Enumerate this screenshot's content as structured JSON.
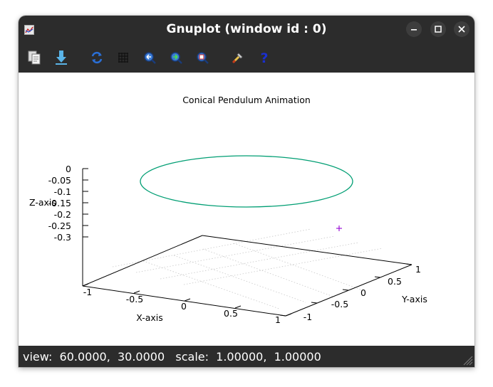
{
  "window": {
    "title": "Gnuplot (window id : 0)"
  },
  "toolbar": {
    "buttons": [
      {
        "name": "copy-to-clipboard",
        "icon": "clipboard-icon"
      },
      {
        "name": "export",
        "icon": "download-arrow-icon"
      },
      {
        "name": "replot",
        "icon": "refresh-icon"
      },
      {
        "name": "toggle-grid",
        "icon": "grid-icon"
      },
      {
        "name": "previous-zoom",
        "icon": "zoom-previous-icon"
      },
      {
        "name": "next-zoom",
        "icon": "zoom-next-icon"
      },
      {
        "name": "autoscale",
        "icon": "autoscale-icon"
      },
      {
        "name": "settings",
        "icon": "wrench-icon"
      },
      {
        "name": "help",
        "icon": "question-icon"
      }
    ]
  },
  "status": {
    "text": "view:  60.0000,  30.0000   scale:  1.00000,  1.00000"
  },
  "chart_data": {
    "type": "line",
    "title": "Conical Pendulum Animation",
    "xlabel": "X-axis",
    "ylabel": "Y-axis",
    "zlabel": "Z-axis",
    "xlim": [
      -1,
      1
    ],
    "ylim": [
      -1,
      1
    ],
    "zlim": [
      -0.35,
      0
    ],
    "x_ticks": [
      "-1",
      "-0.5",
      "0",
      "0.5",
      "1"
    ],
    "y_ticks": [
      "-1",
      "-0.5",
      "0",
      "0.5",
      "1"
    ],
    "z_ticks": [
      "0",
      "-0.05",
      "-0.1",
      "-0.15",
      "-0.2",
      "-0.25",
      "-0.3"
    ],
    "series": [
      {
        "type": "circle",
        "z": -0.05,
        "radius": 0.8,
        "color": "#009e73"
      },
      {
        "type": "point",
        "marker": "+",
        "color": "#9400d3"
      }
    ],
    "grid": true,
    "view": [
      60,
      30
    ]
  }
}
